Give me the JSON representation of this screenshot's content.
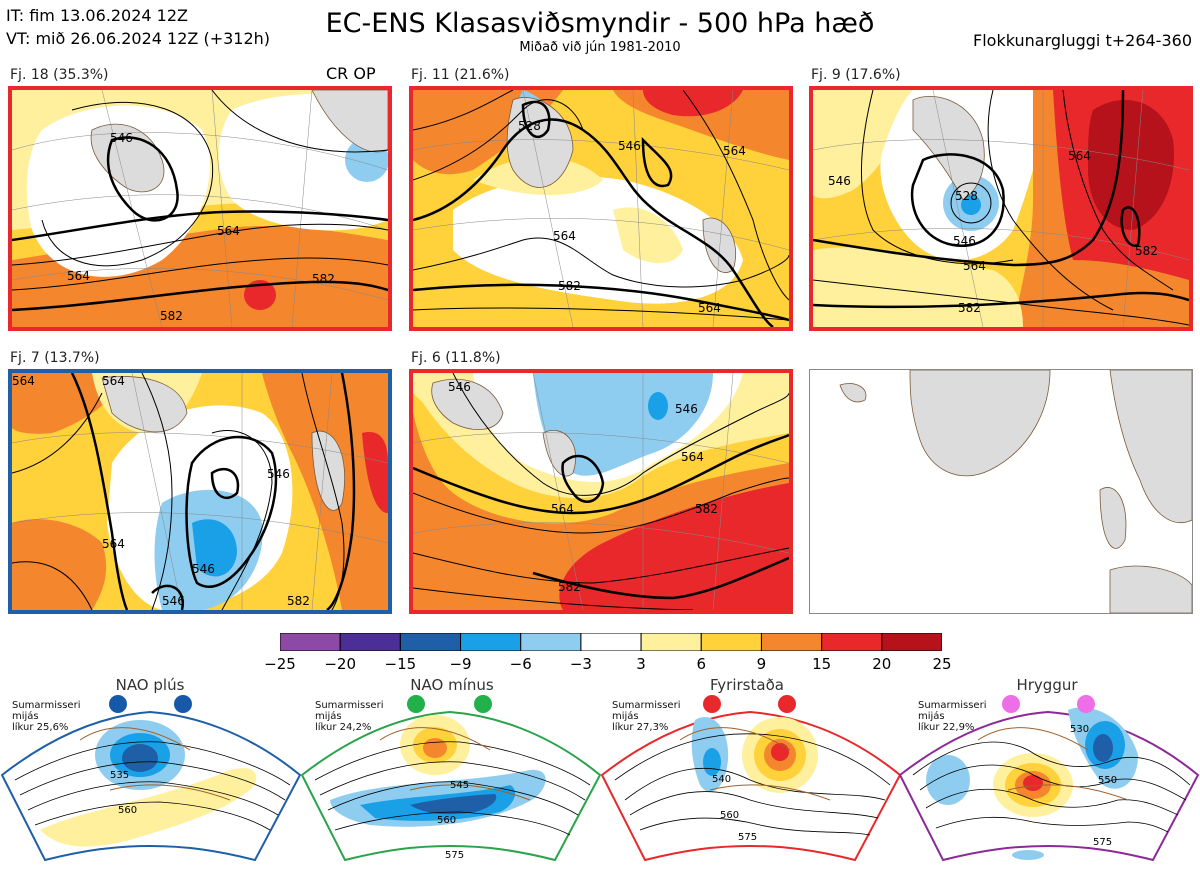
{
  "header": {
    "it_line": "IT: fim 13.06.2024 12Z",
    "vt_line": "VT: mið 26.06.2024 12Z  (+312h)",
    "title": "EC-ENS Klasasviðsmyndir - 500 hPa hæð",
    "subtitle": "Miðað við jún 1981-2010",
    "window": "Flokkunargluggi t+264-360"
  },
  "panels": [
    {
      "label": "Fj. 18 (35.3%)",
      "tag": "CR OP",
      "border": "#e8282a",
      "contours": [
        "546",
        "564",
        "564",
        "582",
        "582"
      ]
    },
    {
      "label": "Fj. 11 (21.6%)",
      "border": "#e8282a",
      "contours": [
        "528",
        "546",
        "564",
        "564",
        "582",
        "564"
      ]
    },
    {
      "label": "Fj. 9 (17.6%)",
      "border": "#e8282a",
      "contours": [
        "546",
        "528",
        "546",
        "564",
        "564",
        "582",
        "582"
      ]
    },
    {
      "label": "Fj. 7 (13.7%)",
      "border": "#1f5fa8",
      "contours": [
        "564",
        "564",
        "546",
        "546",
        "564",
        "546",
        "582"
      ]
    },
    {
      "label": "Fj. 6 (11.8%)",
      "border": "#e8282a",
      "contours": [
        "546",
        "546",
        "564",
        "564",
        "582",
        "582"
      ]
    }
  ],
  "colorscale": {
    "ticks": [
      "−25",
      "−20",
      "−15",
      "−9",
      "−6",
      "−3",
      "3",
      "6",
      "9",
      "15",
      "20",
      "25"
    ],
    "colors": [
      "#8c4aa6",
      "#4b2e96",
      "#1f5fa8",
      "#1aa0e6",
      "#8fcdf0",
      "#ffffff",
      "#fff09e",
      "#ffd13a",
      "#f4862e",
      "#e8282a",
      "#b5121b"
    ]
  },
  "regimes": [
    {
      "name": "NAO plús",
      "line1": "Sumarmisseri",
      "line2": "mijás",
      "line3": "líkur 25,6%",
      "color": "#1f5fa8",
      "dot": "#1659a8",
      "contours": [
        "535",
        "560"
      ]
    },
    {
      "name": "NAO mínus",
      "line1": "Sumarmisseri",
      "line2": "mijás",
      "line3": "líkur 24,2%",
      "color": "#2aa34a",
      "dot": "#22b04a",
      "contours": [
        "545",
        "560",
        "575"
      ]
    },
    {
      "name": "Fyrirstaða",
      "line1": "Sumarmisseri",
      "line2": "mijás",
      "line3": "líkur 27,3%",
      "color": "#e8282a",
      "dot": "#e8282a",
      "contours": [
        "540",
        "560",
        "575"
      ]
    },
    {
      "name": "Hryggur",
      "line1": "Sumarmisseri",
      "line2": "mijás",
      "line3": "líkur 22,9%",
      "color": "#8b2a96",
      "dot": "#ee6ee8",
      "contours": [
        "530",
        "550",
        "575"
      ]
    }
  ]
}
